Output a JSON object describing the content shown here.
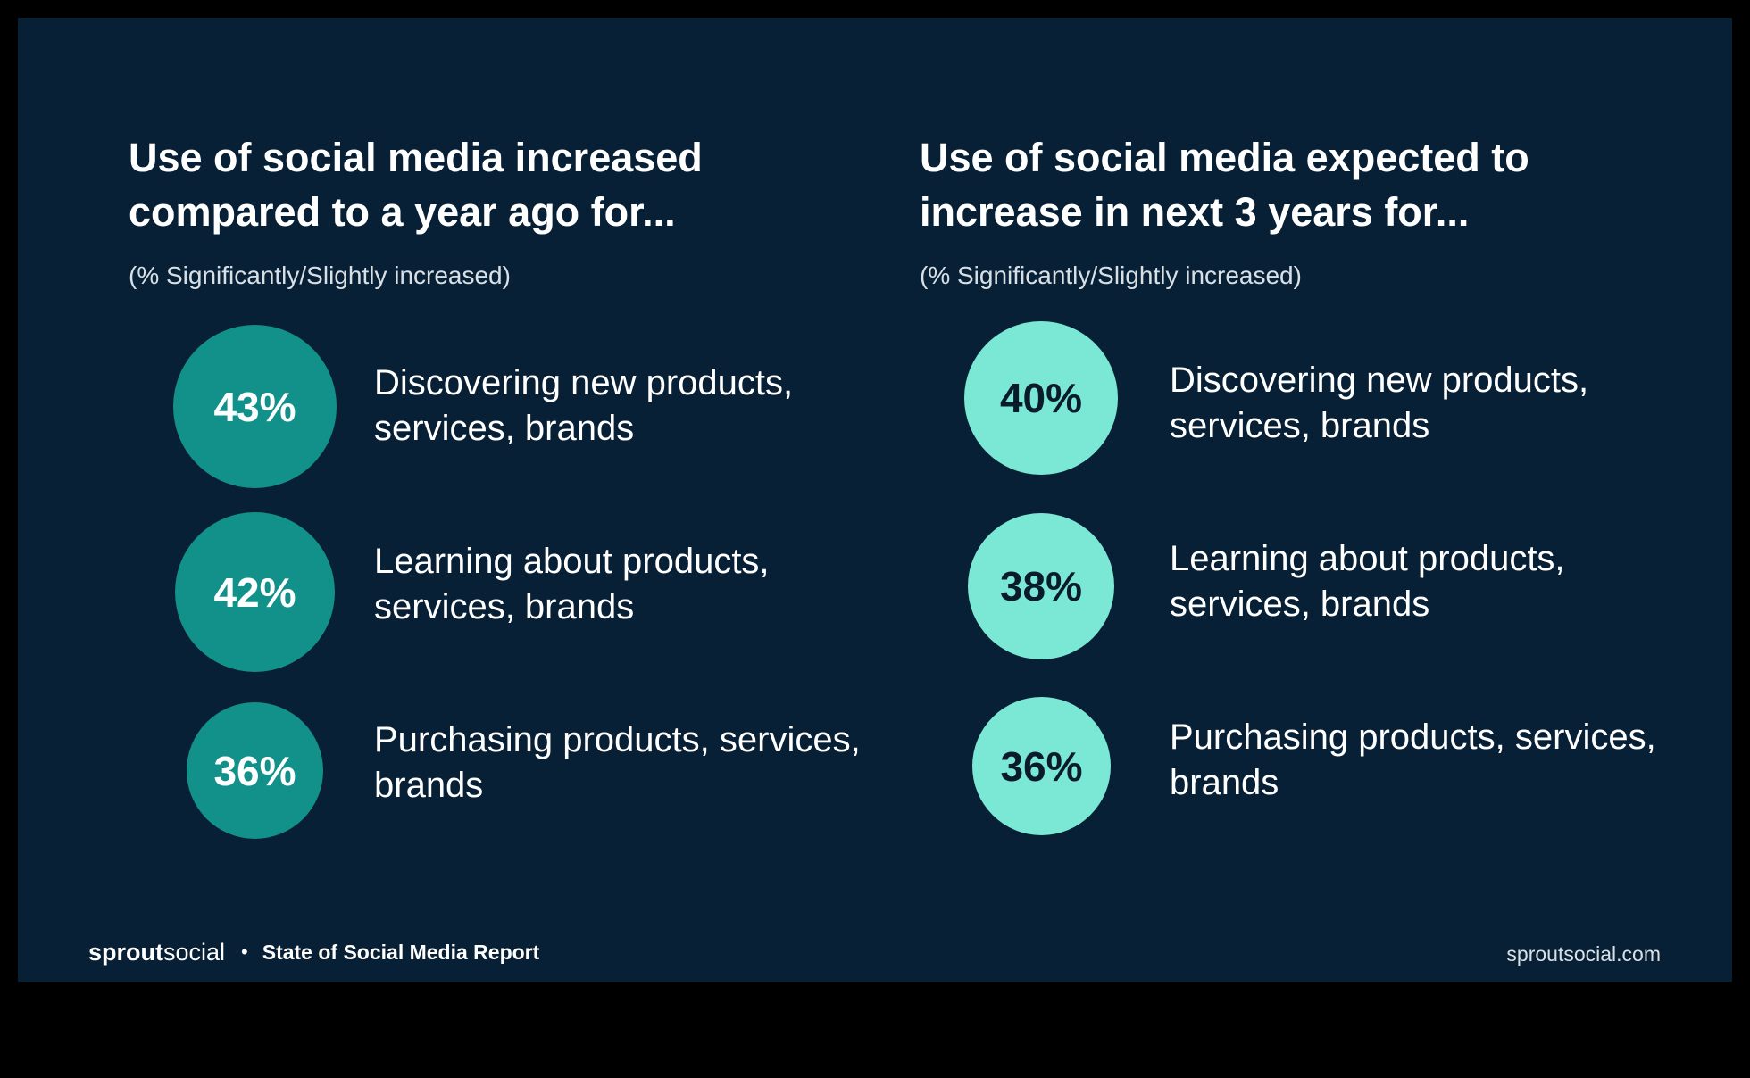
{
  "colors": {
    "background": "#082035",
    "left_circle": "#12918a",
    "right_circle": "#7ae8d4",
    "text": "#ffffff"
  },
  "chart_data": [
    {
      "type": "bubble",
      "title": "Use of social media increased compared to a year ago for...",
      "subtitle": "(% Significantly/Slightly increased)",
      "categories": [
        "Discovering new products, services, brands",
        "Learning about products, services, brands",
        "Purchasing products, services, brands"
      ],
      "values": [
        43,
        42,
        36
      ],
      "value_labels": [
        "43%",
        "42%",
        "36%"
      ],
      "unit": "%"
    },
    {
      "type": "bubble",
      "title": "Use of social media expected to increase in next 3 years for...",
      "subtitle": "(% Significantly/Slightly increased)",
      "categories": [
        "Discovering new products, services, brands",
        "Learning about products, services, brands",
        "Purchasing products, services, brands"
      ],
      "values": [
        40,
        38,
        36
      ],
      "value_labels": [
        "40%",
        "38%",
        "36%"
      ],
      "unit": "%"
    }
  ],
  "footer": {
    "brand_bold": "sprout",
    "brand_light": "social",
    "separator": "•",
    "report_title": "State of Social Media Report",
    "website": "sproutsocial.com"
  }
}
